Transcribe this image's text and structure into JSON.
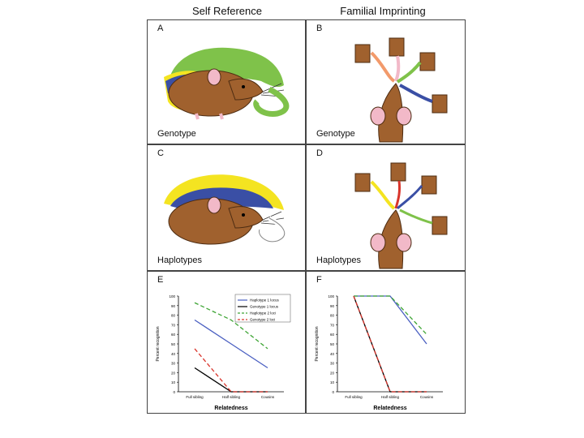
{
  "titles": {
    "left": "Self Reference",
    "right": "Familial Imprinting"
  },
  "panels": {
    "A": {
      "label": "A",
      "caption": "Genotype"
    },
    "B": {
      "label": "B",
      "caption": "Genotype"
    },
    "C": {
      "label": "C",
      "caption": ""
    },
    "D": {
      "label": "D",
      "caption": ""
    },
    "E": {
      "label": "E"
    },
    "F": {
      "label": "F"
    }
  },
  "captions_cd": {
    "C": "Haplotypes",
    "D": "Haplotypes"
  },
  "colors": {
    "brown": "#a0612e",
    "green": "#7fc24a",
    "yellow": "#f4e421",
    "blue": "#3a4fa5",
    "pink": "#f2b9c8"
  },
  "chart_data": [
    {
      "panel": "E",
      "type": "line",
      "categories": [
        "Full sibling",
        "Half sibling",
        "Cousins"
      ],
      "xlabel": "Relatedness",
      "ylabel": "Percent recognition",
      "ylim": [
        0,
        100
      ],
      "yticks": [
        0,
        10,
        20,
        30,
        40,
        50,
        60,
        70,
        80,
        90,
        100
      ],
      "legend_position": "top-right",
      "series": [
        {
          "name": "Haplotype 1 locus",
          "color": "#4a5fc1",
          "dash": "solid",
          "values": [
            75,
            50,
            25
          ]
        },
        {
          "name": "Genotype 1 locus",
          "color": "#000000",
          "dash": "solid",
          "values": [
            25,
            0,
            0
          ]
        },
        {
          "name": "Haplotype 2 loci",
          "color": "#3fa535",
          "dash": "dashed",
          "values": [
            93,
            75,
            45
          ]
        },
        {
          "name": "Genotype 2 loci",
          "color": "#d9342b",
          "dash": "dashed",
          "values": [
            45,
            0,
            0
          ]
        }
      ]
    },
    {
      "panel": "F",
      "type": "line",
      "categories": [
        "Full sibling",
        "Half sibling",
        "Cousins"
      ],
      "xlabel": "Relatedness",
      "ylabel": "Percent recognition",
      "ylim": [
        0,
        100
      ],
      "yticks": [
        0,
        10,
        20,
        30,
        40,
        50,
        60,
        70,
        80,
        90,
        100
      ],
      "series": [
        {
          "name": "Haplotype 1 locus",
          "color": "#4a5fc1",
          "dash": "solid",
          "values": [
            100,
            100,
            50
          ]
        },
        {
          "name": "Genotype 1 locus",
          "color": "#000000",
          "dash": "solid",
          "values": [
            100,
            0,
            0
          ]
        },
        {
          "name": "Haplotype 2 loci",
          "color": "#3fa535",
          "dash": "dashed",
          "values": [
            100,
            100,
            60
          ]
        },
        {
          "name": "Genotype 2 loci",
          "color": "#d9342b",
          "dash": "dashed",
          "values": [
            100,
            0,
            0
          ]
        }
      ]
    }
  ]
}
